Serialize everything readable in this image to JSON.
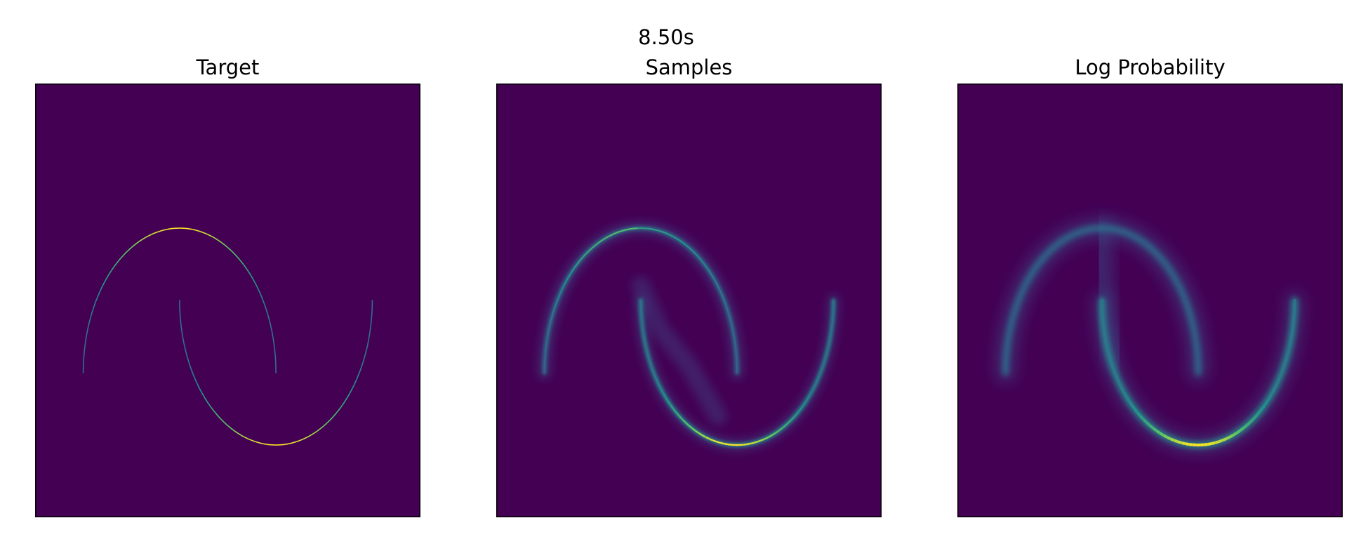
{
  "figure": {
    "suptitle": "8.50s",
    "colormap": "viridis",
    "background_color": "#440154"
  },
  "chart_data": [
    {
      "type": "heatmap",
      "title": "Target",
      "distribution": "two-moons",
      "xlabel": "",
      "ylabel": "",
      "ticks": false,
      "grid": false,
      "moons": [
        {
          "name": "upper",
          "center": [
            0.0,
            0.0
          ],
          "radius": 1.0,
          "theta_from": 0,
          "theta_to": 180
        },
        {
          "name": "lower",
          "center": [
            1.0,
            0.5
          ],
          "radius": 1.0,
          "theta_from": 180,
          "theta_to": 360
        }
      ],
      "xlim": [
        -1.5,
        2.5
      ],
      "ylim": [
        -1.0,
        2.0
      ],
      "peak_density_color": "#fde725"
    },
    {
      "type": "heatmap",
      "title": "Samples",
      "distribution": "two-moons (model samples)",
      "xlabel": "",
      "ylabel": "",
      "ticks": false,
      "grid": false,
      "xlim": [
        -1.5,
        2.5
      ],
      "ylim": [
        -1.0,
        2.0
      ],
      "peak_density_color": "#b5de2b"
    },
    {
      "type": "heatmap",
      "title": "Log Probability",
      "distribution": "two-moons (model log probability)",
      "xlabel": "",
      "ylabel": "",
      "ticks": false,
      "grid": false,
      "xlim": [
        -1.5,
        2.5
      ],
      "ylim": [
        -1.0,
        2.0
      ],
      "peak_density_color": "#7ad151"
    }
  ]
}
